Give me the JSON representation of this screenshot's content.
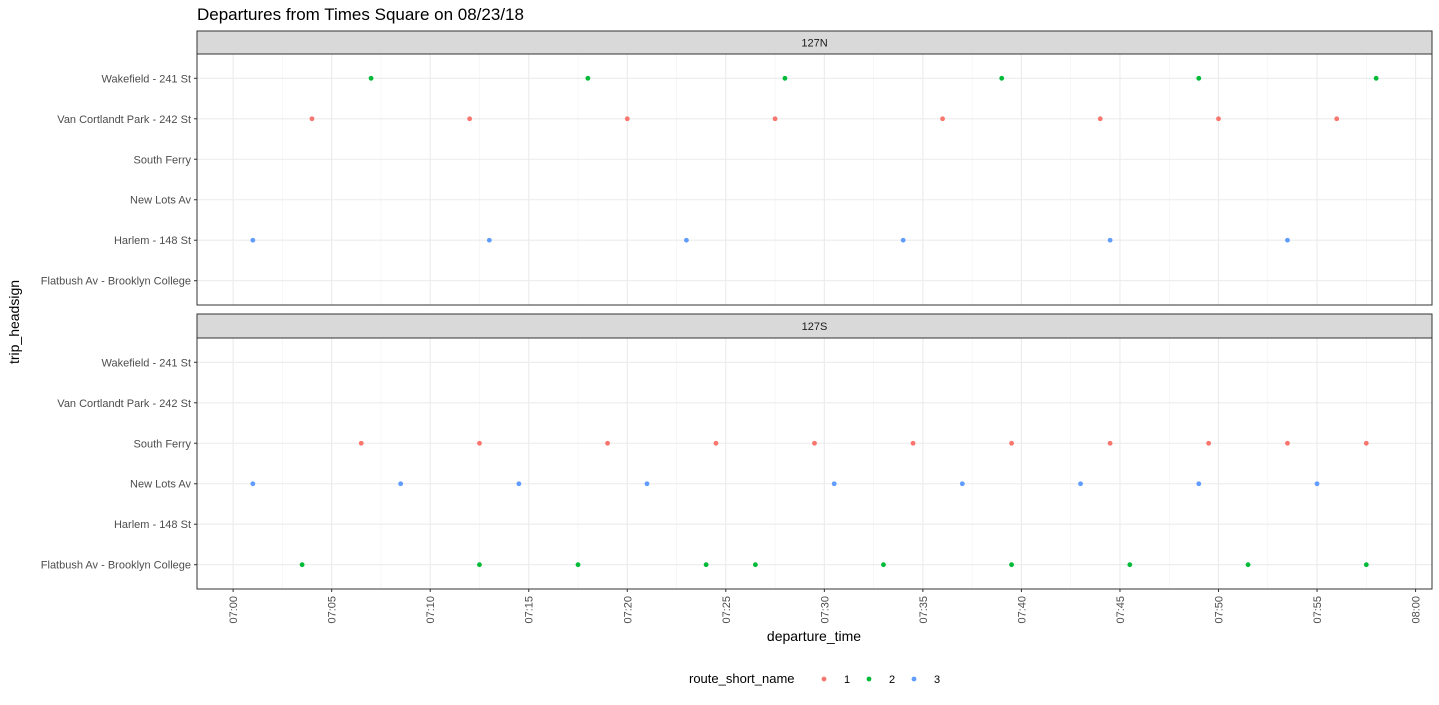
{
  "chart_data": {
    "type": "scatter",
    "title": "Departures from Times Square on 08/23/18",
    "xlabel": "departure_time",
    "ylabel": "trip_headsign",
    "x_type": "time",
    "xlim": [
      "06:58:10",
      "08:00:50"
    ],
    "x_ticks": [
      "07:00",
      "07:05",
      "07:10",
      "07:15",
      "07:20",
      "07:25",
      "07:30",
      "07:35",
      "07:40",
      "07:45",
      "07:50",
      "07:55",
      "08:00"
    ],
    "y_categories": [
      "Wakefield - 241 St",
      "Van Cortlandt Park - 242 St",
      "South Ferry",
      "New Lots Av",
      "Harlem - 148 St",
      "Flatbush Av - Brooklyn College"
    ],
    "grid": true,
    "legend": {
      "title": "route_short_name",
      "position": "bottom",
      "entries": [
        {
          "label": "1",
          "color": "#F8766D"
        },
        {
          "label": "2",
          "color": "#00BA38"
        },
        {
          "label": "3",
          "color": "#619CFF"
        }
      ]
    },
    "panels": [
      {
        "facet": "127N",
        "series": [
          {
            "name": "1",
            "color": "#F8766D",
            "y": "Van Cortlandt Park - 242 St",
            "x": [
              "07:04:00",
              "07:12:00",
              "07:20:00",
              "07:27:30",
              "07:36:00",
              "07:44:00",
              "07:50:00",
              "07:56:00"
            ]
          },
          {
            "name": "2",
            "color": "#00BA38",
            "y": "Wakefield - 241 St",
            "x": [
              "07:07:00",
              "07:18:00",
              "07:28:00",
              "07:39:00",
              "07:49:00",
              "07:58:00"
            ]
          },
          {
            "name": "3",
            "color": "#619CFF",
            "y": "Harlem - 148 St",
            "x": [
              "07:01:00",
              "07:13:00",
              "07:23:00",
              "07:34:00",
              "07:44:30",
              "07:53:30"
            ]
          }
        ]
      },
      {
        "facet": "127S",
        "series": [
          {
            "name": "1",
            "color": "#F8766D",
            "y": "South Ferry",
            "x": [
              "07:06:30",
              "07:12:30",
              "07:19:00",
              "07:24:30",
              "07:29:30",
              "07:34:30",
              "07:39:30",
              "07:44:30",
              "07:49:30",
              "07:53:30",
              "07:57:30"
            ]
          },
          {
            "name": "2",
            "color": "#00BA38",
            "y": "Flatbush Av - Brooklyn College",
            "x": [
              "07:03:30",
              "07:12:30",
              "07:17:30",
              "07:24:00",
              "07:26:30",
              "07:33:00",
              "07:39:30",
              "07:45:30",
              "07:51:30",
              "07:57:30"
            ]
          },
          {
            "name": "3",
            "color": "#619CFF",
            "y": "New Lots Av",
            "x": [
              "07:01:00",
              "07:08:30",
              "07:14:30",
              "07:21:00",
              "07:30:30",
              "07:37:00",
              "07:43:00",
              "07:49:00",
              "07:55:00"
            ]
          }
        ]
      }
    ]
  }
}
